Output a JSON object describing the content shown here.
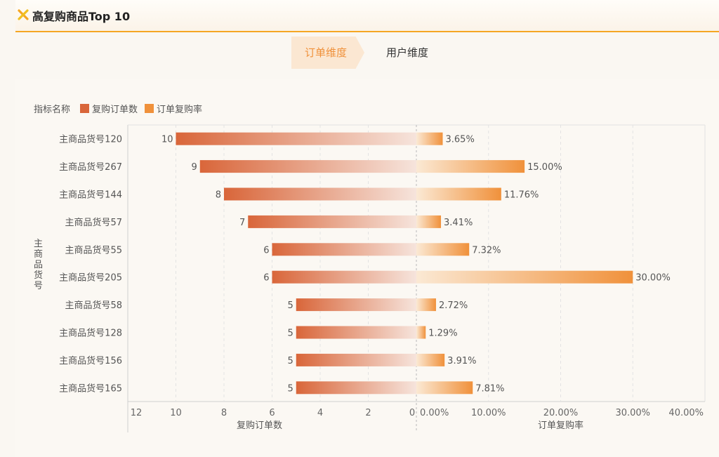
{
  "header": {
    "title": "高复购商品Top 10",
    "icon": "cross-logo-icon",
    "accent_color": "#f5a623"
  },
  "tabs": [
    {
      "label": "订单维度",
      "active": true
    },
    {
      "label": "用户维度",
      "active": false
    }
  ],
  "legend": {
    "title": "指标名称",
    "items": [
      {
        "label": "复购订单数",
        "color": "#d9663a"
      },
      {
        "label": "订单复购率",
        "color": "#f0913b"
      }
    ]
  },
  "y_axis_label": "主商品货号",
  "chart_data": {
    "type": "bar",
    "orientation": "horizontal-butterfly",
    "categories": [
      "主商品货号120",
      "主商品货号267",
      "主商品货号144",
      "主商品货号57",
      "主商品货号55",
      "主商品货号205",
      "主商品货号58",
      "主商品货号128",
      "主商品货号156",
      "主商品货号165"
    ],
    "series": [
      {
        "name": "复购订单数",
        "side": "left",
        "values": [
          10,
          9,
          8,
          7,
          6,
          6,
          5,
          5,
          5,
          5
        ],
        "labels": [
          "10",
          "9",
          "8",
          "7",
          "6",
          "6",
          "5",
          "5",
          "5",
          "5"
        ],
        "xlabel": "复购订单数",
        "xlim": [
          0,
          12
        ],
        "ticks": [
          "12",
          "10",
          "8",
          "6",
          "4",
          "2",
          "0"
        ],
        "color": "#d9663a"
      },
      {
        "name": "订单复购率",
        "side": "right",
        "values": [
          3.65,
          15.0,
          11.76,
          3.41,
          7.32,
          30.0,
          2.72,
          1.29,
          3.91,
          7.81
        ],
        "labels": [
          "3.65%",
          "15.00%",
          "11.76%",
          "3.41%",
          "7.32%",
          "30.00%",
          "2.72%",
          "1.29%",
          "3.91%",
          "7.81%"
        ],
        "xlabel": "订单复购率",
        "xlim": [
          0,
          40
        ],
        "ticks": [
          "0.00%",
          "10.00%",
          "20.00%",
          "30.00%",
          "40.00%"
        ],
        "color": "#f0913b"
      }
    ],
    "grid": true
  }
}
